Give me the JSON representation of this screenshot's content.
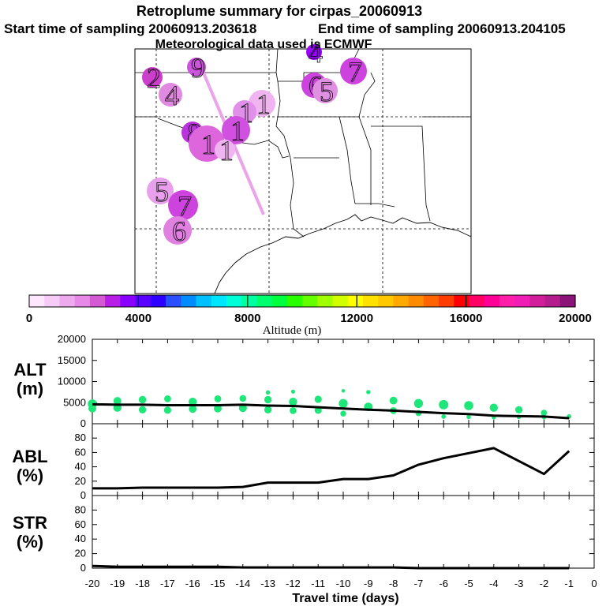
{
  "titles": {
    "line1": "Retroplume summary for cirpas_20060913",
    "line2a": "Start time of sampling 20060913.203618",
    "line2b": "End time of sampling 20060913.204105",
    "line3": "Meteorological data used is ECMWF"
  },
  "colorbar": {
    "label": "Altitude (m)",
    "ticks": [
      "0",
      "4000",
      "8000",
      "12000",
      "16000",
      "20000"
    ],
    "colors": [
      "#ffe6ff",
      "#f7cbf7",
      "#eeaaee",
      "#e78ae7",
      "#d45ad4",
      "#b81fe6",
      "#8a00ff",
      "#5a00ff",
      "#2d00ff",
      "#2a4fff",
      "#008cff",
      "#00c0ff",
      "#00e6ff",
      "#00ffd8",
      "#00ffa0",
      "#00ff6e",
      "#00ff3c",
      "#28ff00",
      "#64ff00",
      "#a0ff00",
      "#d2ff00",
      "#ffff00",
      "#ffe100",
      "#ffc800",
      "#ffaa00",
      "#ff8c00",
      "#ff6400",
      "#ff3c00",
      "#ff0000",
      "#ff0064",
      "#ff0096",
      "#ff1eaa",
      "#f01eb4",
      "#d21e9b",
      "#b41e8c",
      "#8c1478"
    ]
  },
  "map_markers": {
    "labels": [
      "2",
      "4",
      "9",
      "1",
      "1",
      "1",
      "8",
      "1",
      "1",
      "5",
      "7",
      "6",
      "4",
      "7",
      "6",
      "5"
    ],
    "colors": [
      "#cc3fcc",
      "#e08ae0",
      "#cc55dd",
      "#f0b4f0",
      "#e090e8",
      "#d050e0",
      "#bb33dd",
      "#dd66dd",
      "#f0b4f0",
      "#e9a0ec",
      "#cc44dd",
      "#e080e0",
      "#9a00ff",
      "#cc44dd",
      "#cc44dd",
      "#e090e0"
    ]
  },
  "panel_labels": {
    "alt": [
      "ALT",
      "(m)"
    ],
    "abl": [
      "ABL",
      "(%)"
    ],
    "str": [
      "STR",
      "(%)"
    ]
  },
  "chart_data": [
    {
      "type": "line",
      "name": "ALT",
      "title": "",
      "xlabel": "Travel time (days)",
      "ylabel": "ALT (m)",
      "xlim": [
        -20,
        0
      ],
      "ylim": [
        0,
        20000
      ],
      "yticks": [
        "20000",
        "15000",
        "10000",
        "5000",
        "0"
      ],
      "xticks": [
        "-20",
        "-19",
        "-18",
        "-17",
        "-16",
        "-15",
        "-14",
        "-13",
        "-12",
        "-11",
        "-10",
        "-9",
        "-8",
        "-7",
        "-6",
        "-5",
        "-4",
        "-3",
        "-2",
        "-1",
        "0"
      ],
      "x": [
        -20,
        -19,
        -18,
        -17,
        -16,
        -15,
        -14,
        -13,
        -12,
        -11,
        -10,
        -9,
        -8,
        -7,
        -6,
        -5,
        -4,
        -3,
        -2,
        -1
      ],
      "values": [
        4600,
        4500,
        4500,
        4400,
        4400,
        4400,
        4500,
        4300,
        4200,
        3900,
        3600,
        3300,
        3100,
        2800,
        2500,
        2300,
        1900,
        1800,
        1700,
        1300
      ],
      "scatter_points": [
        [
          -20,
          4700
        ],
        [
          -20,
          3600
        ],
        [
          -19,
          5400
        ],
        [
          -19,
          3800
        ],
        [
          -18,
          5700
        ],
        [
          -18,
          3300
        ],
        [
          -17,
          5900
        ],
        [
          -17,
          3200
        ],
        [
          -16,
          5200
        ],
        [
          -16,
          3500
        ],
        [
          -15,
          5900
        ],
        [
          -15,
          3600
        ],
        [
          -14,
          6000
        ],
        [
          -14,
          3700
        ],
        [
          -13,
          7400
        ],
        [
          -13,
          5700
        ],
        [
          -13,
          3300
        ],
        [
          -12,
          7600
        ],
        [
          -12,
          5200
        ],
        [
          -12,
          3100
        ],
        [
          -11,
          5800
        ],
        [
          -11,
          3200
        ],
        [
          -10,
          7800
        ],
        [
          -10,
          4800
        ],
        [
          -10,
          2400
        ],
        [
          -9,
          7500
        ],
        [
          -9,
          4000
        ],
        [
          -8,
          5500
        ],
        [
          -8,
          3100
        ],
        [
          -7,
          4800
        ],
        [
          -7,
          2500
        ],
        [
          -6,
          4500
        ],
        [
          -6,
          1700
        ],
        [
          -5,
          4300
        ],
        [
          -5,
          1600
        ],
        [
          -4,
          3800
        ],
        [
          -4,
          1500
        ],
        [
          -3,
          3300
        ],
        [
          -3,
          1600
        ],
        [
          -2,
          2600
        ],
        [
          -2,
          1500
        ],
        [
          -1,
          1700
        ]
      ],
      "scatter_color": "#1ee678"
    },
    {
      "type": "line",
      "name": "ABL",
      "ylabel": "ABL (%)",
      "xlim": [
        -20,
        0
      ],
      "ylim": [
        0,
        100
      ],
      "yticks": [
        "80",
        "60",
        "40",
        "20",
        "0"
      ],
      "x": [
        -20,
        -19,
        -18,
        -17,
        -16,
        -15,
        -14,
        -13,
        -12,
        -11,
        -10,
        -9,
        -8,
        -7,
        -6,
        -5,
        -4,
        -3,
        -2,
        -1
      ],
      "values": [
        10,
        10,
        11,
        11,
        11,
        11,
        12,
        18,
        18,
        18,
        23,
        23,
        28,
        43,
        52,
        59,
        66,
        48,
        30,
        62
      ]
    },
    {
      "type": "line",
      "name": "STR",
      "ylabel": "STR (%)",
      "xlim": [
        -20,
        0
      ],
      "ylim": [
        0,
        100
      ],
      "yticks": [
        "80",
        "60",
        "40",
        "20",
        "0"
      ],
      "x": [
        -20,
        -19,
        -18,
        -17,
        -16,
        -15,
        -14,
        -13,
        -12,
        -11,
        -10,
        -9,
        -8,
        -7,
        -6,
        -5,
        -4,
        -3,
        -2,
        -1
      ],
      "values": [
        3,
        2,
        2,
        2,
        2,
        2,
        1,
        1,
        1,
        1,
        1,
        1,
        1,
        0,
        0,
        0,
        0,
        0,
        0,
        0
      ]
    }
  ]
}
